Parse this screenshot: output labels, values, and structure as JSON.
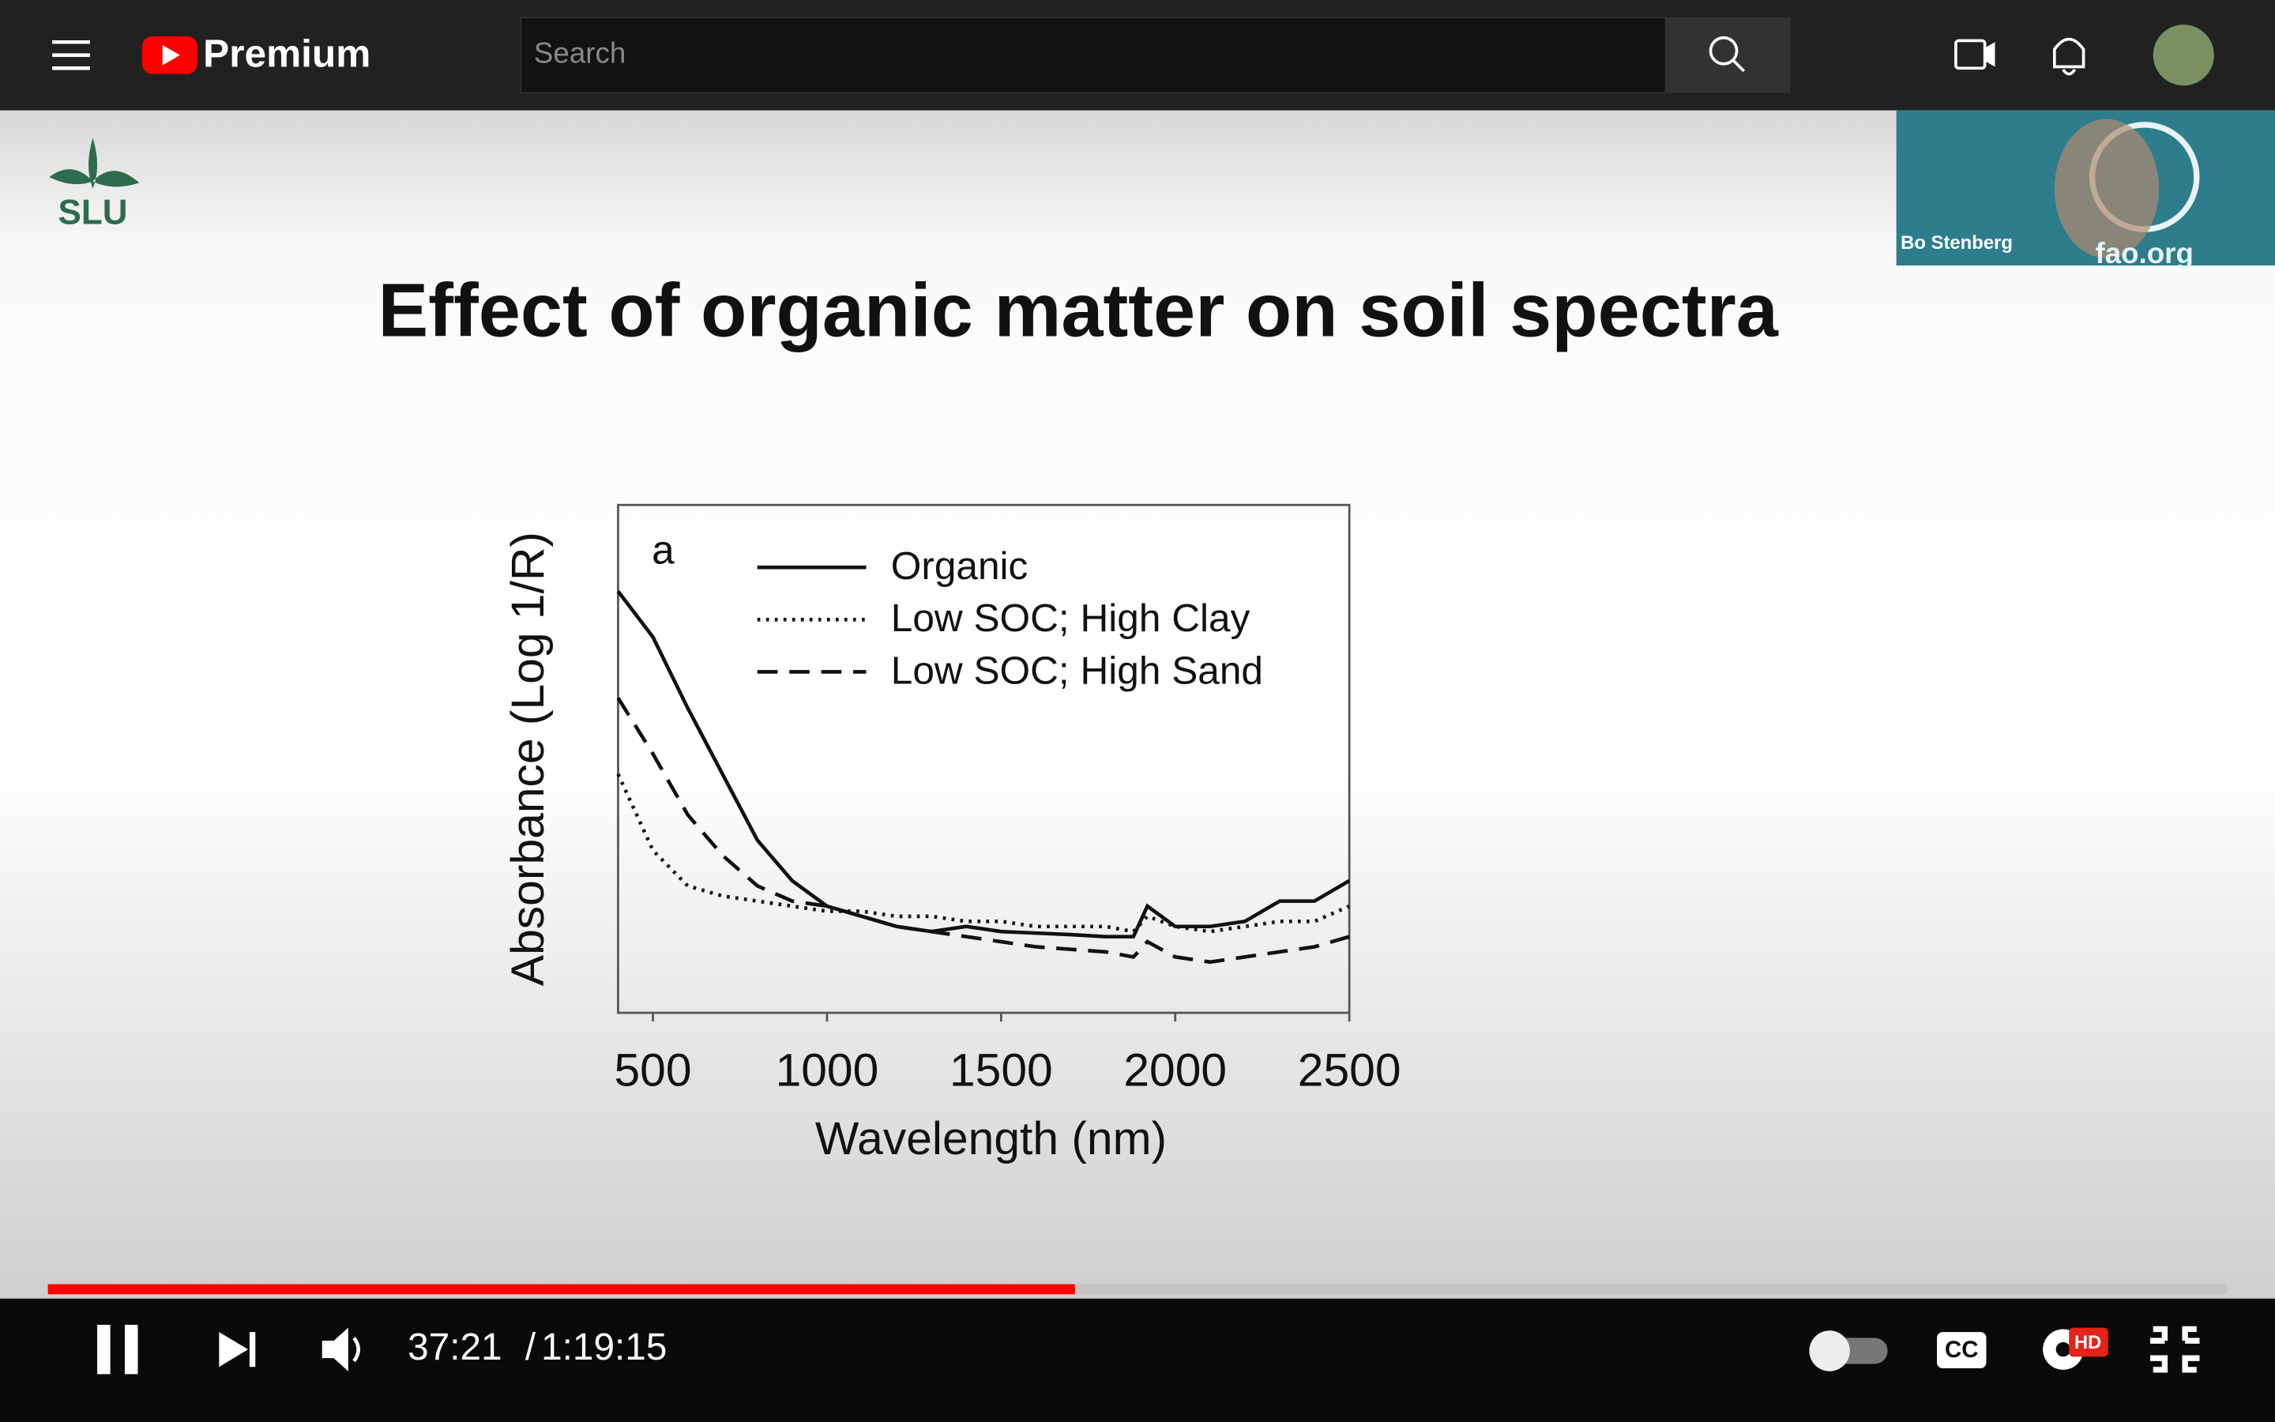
{
  "header": {
    "logo": "Premium",
    "search_placeholder": "Search"
  },
  "slide": {
    "logo": "SLU",
    "speaker": "Bo Stenberg",
    "watermark": "fao.org"
  },
  "chart_data": {
    "type": "line",
    "title": "Effect of organic matter on soil spectra",
    "panel_label": "a",
    "x_label": "Wavelength (nm)",
    "y_label": "Absorbance (Log 1/R)",
    "xlim": [
      400,
      2500
    ],
    "xticks": [
      500,
      1000,
      1500,
      2000,
      2500
    ],
    "ylim": [
      0,
      1
    ],
    "x": [
      400,
      500,
      600,
      700,
      800,
      900,
      1000,
      1100,
      1200,
      1300,
      1400,
      1500,
      1600,
      1700,
      1800,
      1880,
      1920,
      2000,
      2100,
      2200,
      2300,
      2400,
      2500
    ],
    "series": [
      {
        "name": "Organic",
        "color": "#111111",
        "style": "solid",
        "values": [
          0.83,
          0.74,
          0.6,
          0.47,
          0.34,
          0.26,
          0.21,
          0.19,
          0.17,
          0.16,
          0.17,
          0.16,
          0.157,
          0.154,
          0.15,
          0.15,
          0.21,
          0.17,
          0.17,
          0.18,
          0.22,
          0.22,
          0.26
        ]
      },
      {
        "name": "Low SOC; High Clay",
        "color": "#111111",
        "style": "dotted",
        "values": [
          0.47,
          0.32,
          0.25,
          0.23,
          0.22,
          0.21,
          0.2,
          0.2,
          0.19,
          0.19,
          0.18,
          0.18,
          0.17,
          0.17,
          0.17,
          0.16,
          0.19,
          0.17,
          0.16,
          0.17,
          0.18,
          0.18,
          0.21
        ]
      },
      {
        "name": "Low SOC; High Sand",
        "color": "#111111",
        "style": "dashed",
        "values": [
          0.62,
          0.51,
          0.39,
          0.31,
          0.25,
          0.22,
          0.21,
          0.19,
          0.17,
          0.16,
          0.15,
          0.14,
          0.13,
          0.125,
          0.12,
          0.11,
          0.14,
          0.11,
          0.1,
          0.11,
          0.12,
          0.13,
          0.15
        ]
      }
    ]
  },
  "player": {
    "current_time": "37:21",
    "separator": "/",
    "duration": "1:19:15",
    "cc": "CC",
    "hd": "HD"
  }
}
